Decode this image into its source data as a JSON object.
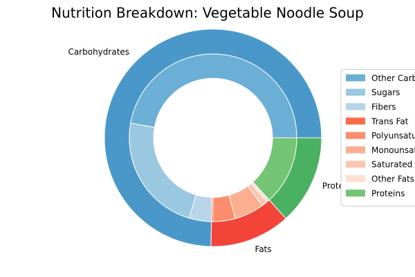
{
  "chart_data": {
    "type": "nested-pie",
    "title": "Nutrition Breakdown:  Vegetable Noodle Soup",
    "rings": [
      {
        "labels": [
          "Carbohydrates",
          "Fats",
          "Proteins"
        ],
        "values": [
          74.7,
          12,
          13.3
        ],
        "colors": [
          "#4a98c9",
          "#f3443a",
          "#4ab062"
        ]
      },
      {
        "labels": [
          "Other Carbs",
          "Sugars",
          "Fibers",
          "Trans Fat",
          "Polyunsaturated Fat",
          "Monounsaturated Fat",
          "Saturated Fat",
          "Other Fats",
          "Proteins"
        ],
        "values": [
          47.2,
          23.2,
          4.3,
          0.3,
          4.3,
          5.7,
          1.1,
          0.6,
          13.3
        ],
        "colors": [
          "#6baed6",
          "#9ac8e0",
          "#b7d4ea",
          "#fb6a4a",
          "#fc8d6c",
          "#fcae91",
          "#fcc5b0",
          "#fee0d2",
          "#74c476"
        ]
      }
    ],
    "legend": "center right"
  }
}
